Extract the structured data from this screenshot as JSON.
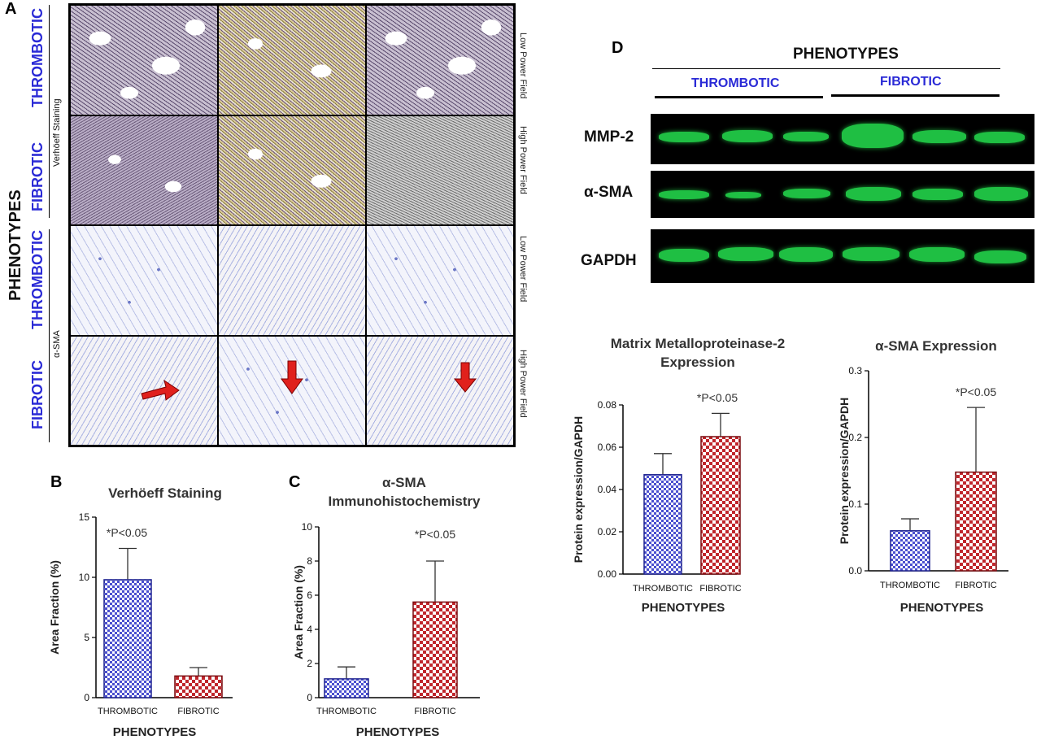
{
  "panel_letters": {
    "a": "A",
    "b": "B",
    "c": "C",
    "d": "D"
  },
  "panel_a": {
    "side_label": "PHENOTYPES",
    "rows": [
      {
        "phenotype": "THROMBOTIC",
        "stain": "Verhöeff Staining",
        "field": "Low Power Field"
      },
      {
        "phenotype": "FIBROTIC",
        "stain": "",
        "field": "High Power Field"
      },
      {
        "phenotype": "THROMBOTIC",
        "stain": "",
        "field": "Low Power Field"
      },
      {
        "phenotype": "FIBROTIC",
        "stain": "α-SMA",
        "field": "High Power Field"
      }
    ]
  },
  "panel_d": {
    "header": "PHENOTYPES",
    "group_1": "THROMBOTIC",
    "group_2": "FIBROTIC",
    "blot_labels": [
      "MMP-2",
      "α-SMA",
      "GAPDH"
    ]
  },
  "colors": {
    "blue_text": "#2a2ad6",
    "bar_thrombotic": "#5b5fd6",
    "bar_fibrotic": "#c0262c",
    "band_green": "#1fbf43"
  },
  "chart_data": [
    {
      "type": "bar",
      "id": "B",
      "title": "Verhöeff Staining",
      "xlabel": "PHENOTYPES",
      "ylabel": "Area Fraction (%)",
      "categories": [
        "THROMBOTIC",
        "FIBROTIC"
      ],
      "values": [
        9.8,
        1.8
      ],
      "errors": [
        2.6,
        0.7
      ],
      "ylim": [
        0,
        15
      ],
      "yticks": [
        "0",
        "5",
        "10",
        "15"
      ],
      "annotation": "*P<0.05"
    },
    {
      "type": "bar",
      "id": "C",
      "title": "α-SMA Immunohistochemistry",
      "title_lines": [
        "α-SMA",
        "Immunohistochemistry"
      ],
      "xlabel": "PHENOTYPES",
      "ylabel": "Area Fraction (%)",
      "categories": [
        "THROMBOTIC",
        "FIBROTIC"
      ],
      "values": [
        1.1,
        5.6
      ],
      "errors": [
        0.7,
        2.4
      ],
      "ylim": [
        0,
        10
      ],
      "yticks": [
        "0",
        "2",
        "4",
        "6",
        "8",
        "10"
      ],
      "annotation": "*P<0.05"
    },
    {
      "type": "bar",
      "id": "D1",
      "title": "Matrix Metalloproteinase-2 Expression",
      "title_lines": [
        "Matrix Metalloproteinase-2",
        "Expression"
      ],
      "xlabel": "PHENOTYPES",
      "ylabel": "Protein expression/GAPDH",
      "categories": [
        "THROMBOTIC",
        "FIBROTIC"
      ],
      "values": [
        0.047,
        0.065
      ],
      "errors": [
        0.01,
        0.011
      ],
      "ylim": [
        0,
        0.08
      ],
      "yticks": [
        "0.00",
        "0.02",
        "0.04",
        "0.06",
        "0.08"
      ],
      "annotation": "*P<0.05"
    },
    {
      "type": "bar",
      "id": "D2",
      "title": "α-SMA Expression",
      "xlabel": "PHENOTYPES",
      "ylabel": "Protein expression/GAPDH",
      "categories": [
        "THROMBOTIC",
        "FIBROTIC"
      ],
      "values": [
        0.06,
        0.148
      ],
      "errors": [
        0.018,
        0.097
      ],
      "ylim": [
        0,
        0.3
      ],
      "yticks": [
        "0.0",
        "0.1",
        "0.2",
        "0.3"
      ],
      "annotation": "*P<0.05"
    }
  ]
}
